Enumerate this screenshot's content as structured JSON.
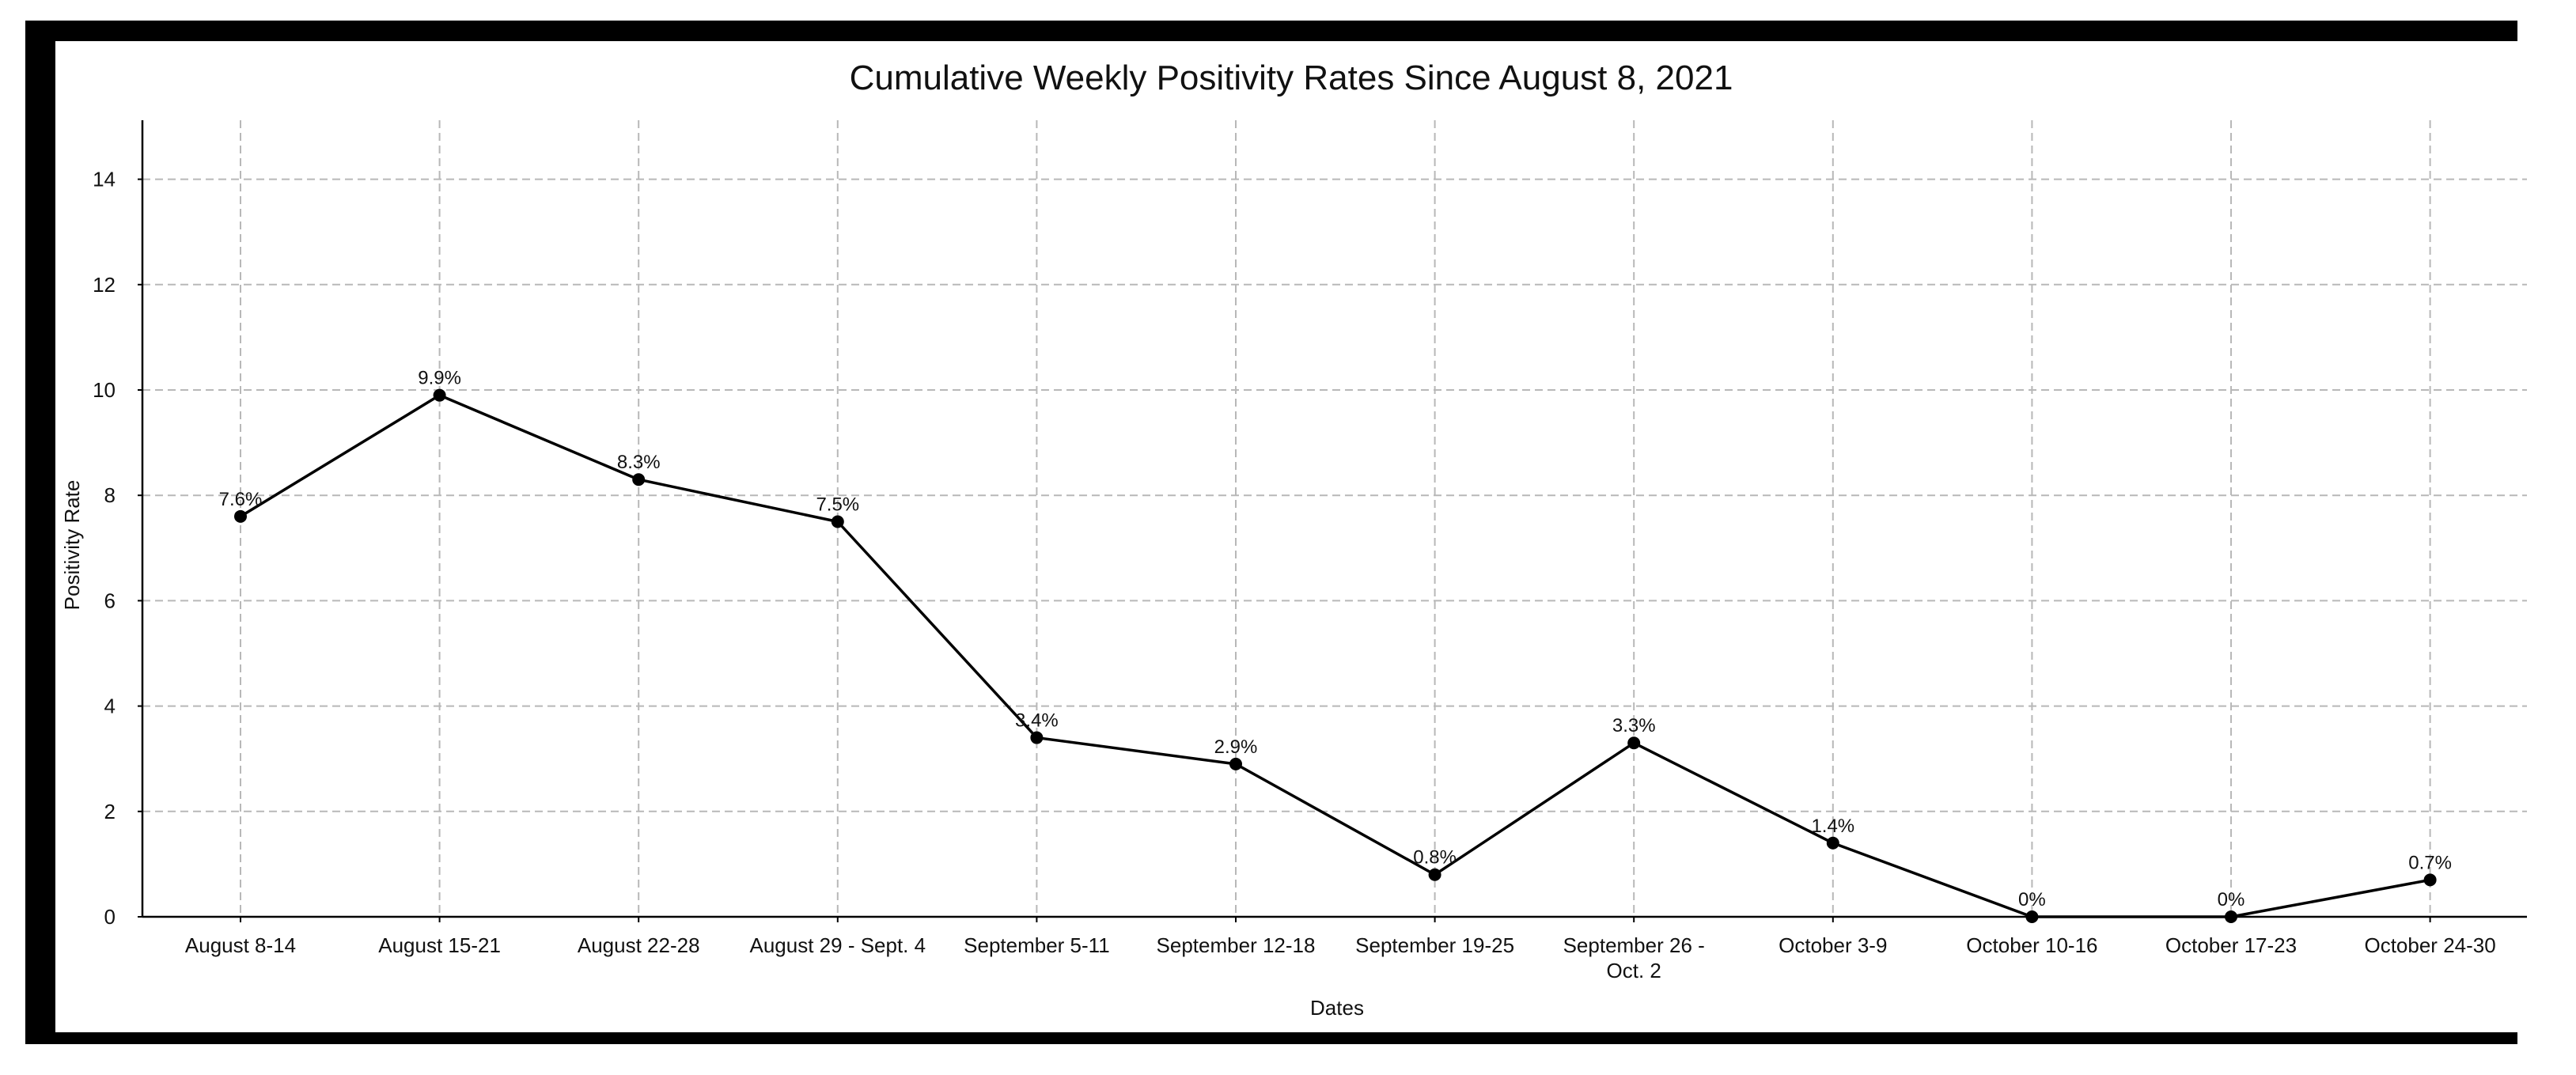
{
  "chart_data": {
    "type": "line",
    "title": "Cumulative Weekly Positivity Rates Since August 8, 2021",
    "xlabel": "Dates",
    "ylabel": "Positivity Rate",
    "categories": [
      "August 8-14",
      "August 15-21",
      "August 22-28",
      "August 29 - Sept. 4",
      "September 5-11",
      "September 12-18",
      "September 19-25",
      "September 26 - Oct. 2",
      "October 3-9",
      "October 10-16",
      "October 17-23",
      "October 24-30"
    ],
    "category_lines": [
      [
        "August 8-14"
      ],
      [
        "August 15-21"
      ],
      [
        "August 22-28"
      ],
      [
        "August 29 - Sept. 4"
      ],
      [
        "September 5-11"
      ],
      [
        "September 12-18"
      ],
      [
        "September 19-25"
      ],
      [
        "September 26 -",
        "Oct. 2"
      ],
      [
        "October 3-9"
      ],
      [
        "October 10-16"
      ],
      [
        "October 17-23"
      ],
      [
        "October 24-30"
      ]
    ],
    "values": [
      7.6,
      9.9,
      8.3,
      7.5,
      3.4,
      2.9,
      0.8,
      3.3,
      1.4,
      0,
      0,
      0.7
    ],
    "data_labels": [
      "7.6%",
      "9.9%",
      "8.3%",
      "7.5%",
      "3.4%",
      "2.9%",
      "0.8%",
      "3.3%",
      "1.4%",
      "0%",
      "0%",
      "0.7%"
    ],
    "ylim": [
      0,
      15
    ],
    "yticks": [
      0,
      2,
      4,
      6,
      8,
      10,
      12,
      14
    ],
    "grid": true,
    "legend": "none",
    "line_color": "#000000"
  }
}
